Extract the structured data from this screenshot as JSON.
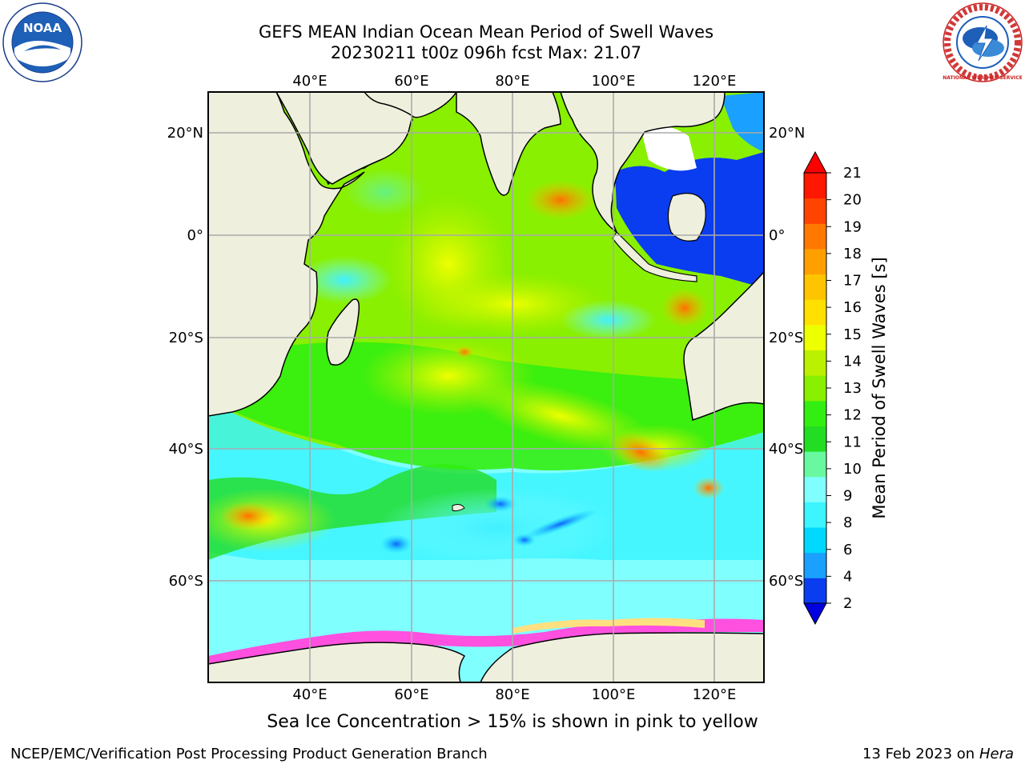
{
  "title": {
    "line1": "GEFS MEAN Indian Ocean Mean Period of Swell Waves",
    "line2": "20230211 t00z 096h fcst   Max: 21.07"
  },
  "map": {
    "top_lon_labels": [
      "40°E",
      "60°E",
      "80°E",
      "100°E",
      "120°E"
    ],
    "bottom_lon_labels": [
      "40°E",
      "60°E",
      "80°E",
      "100°E",
      "120°E"
    ],
    "left_lat_labels": [
      "20°N",
      "0°",
      "20°S",
      "40°S",
      "60°S"
    ],
    "right_lat_labels": [
      "20°N",
      "0°",
      "20°S",
      "40°S",
      "60°S"
    ],
    "extent": {
      "lon_min": 20,
      "lon_max": 130,
      "lat_min": -70,
      "lat_max": 28
    }
  },
  "colorbar": {
    "label": "Mean Period of Swell Waves [s]",
    "ticks": [
      "2",
      "4",
      "6",
      "8",
      "9",
      "10",
      "11",
      "12",
      "13",
      "14",
      "15",
      "16",
      "17",
      "18",
      "19",
      "20",
      "21"
    ],
    "colors": [
      "#0a3cf0",
      "#1aa0ff",
      "#00d8ff",
      "#3cf5ff",
      "#80ffff",
      "#68f8a0",
      "#22dd22",
      "#33ee11",
      "#88f000",
      "#bbf000",
      "#eeff00",
      "#ffe000",
      "#ffc400",
      "#ffa000",
      "#ff7800",
      "#ff4400",
      "#ff1800"
    ],
    "under_color": "#0000e0",
    "over_color": "#ff0000"
  },
  "note": "Sea Ice Concentration > 15% is shown in pink to yellow",
  "footer": {
    "left": "NCEP/EMC/Verification Post Processing Product Generation Branch",
    "right_date": "13 Feb 2023 on",
    "right_machine": "Hera"
  },
  "logos": {
    "noaa_text": "NOAA",
    "nws_text": "NATIONAL WEATHER SERVICE"
  }
}
